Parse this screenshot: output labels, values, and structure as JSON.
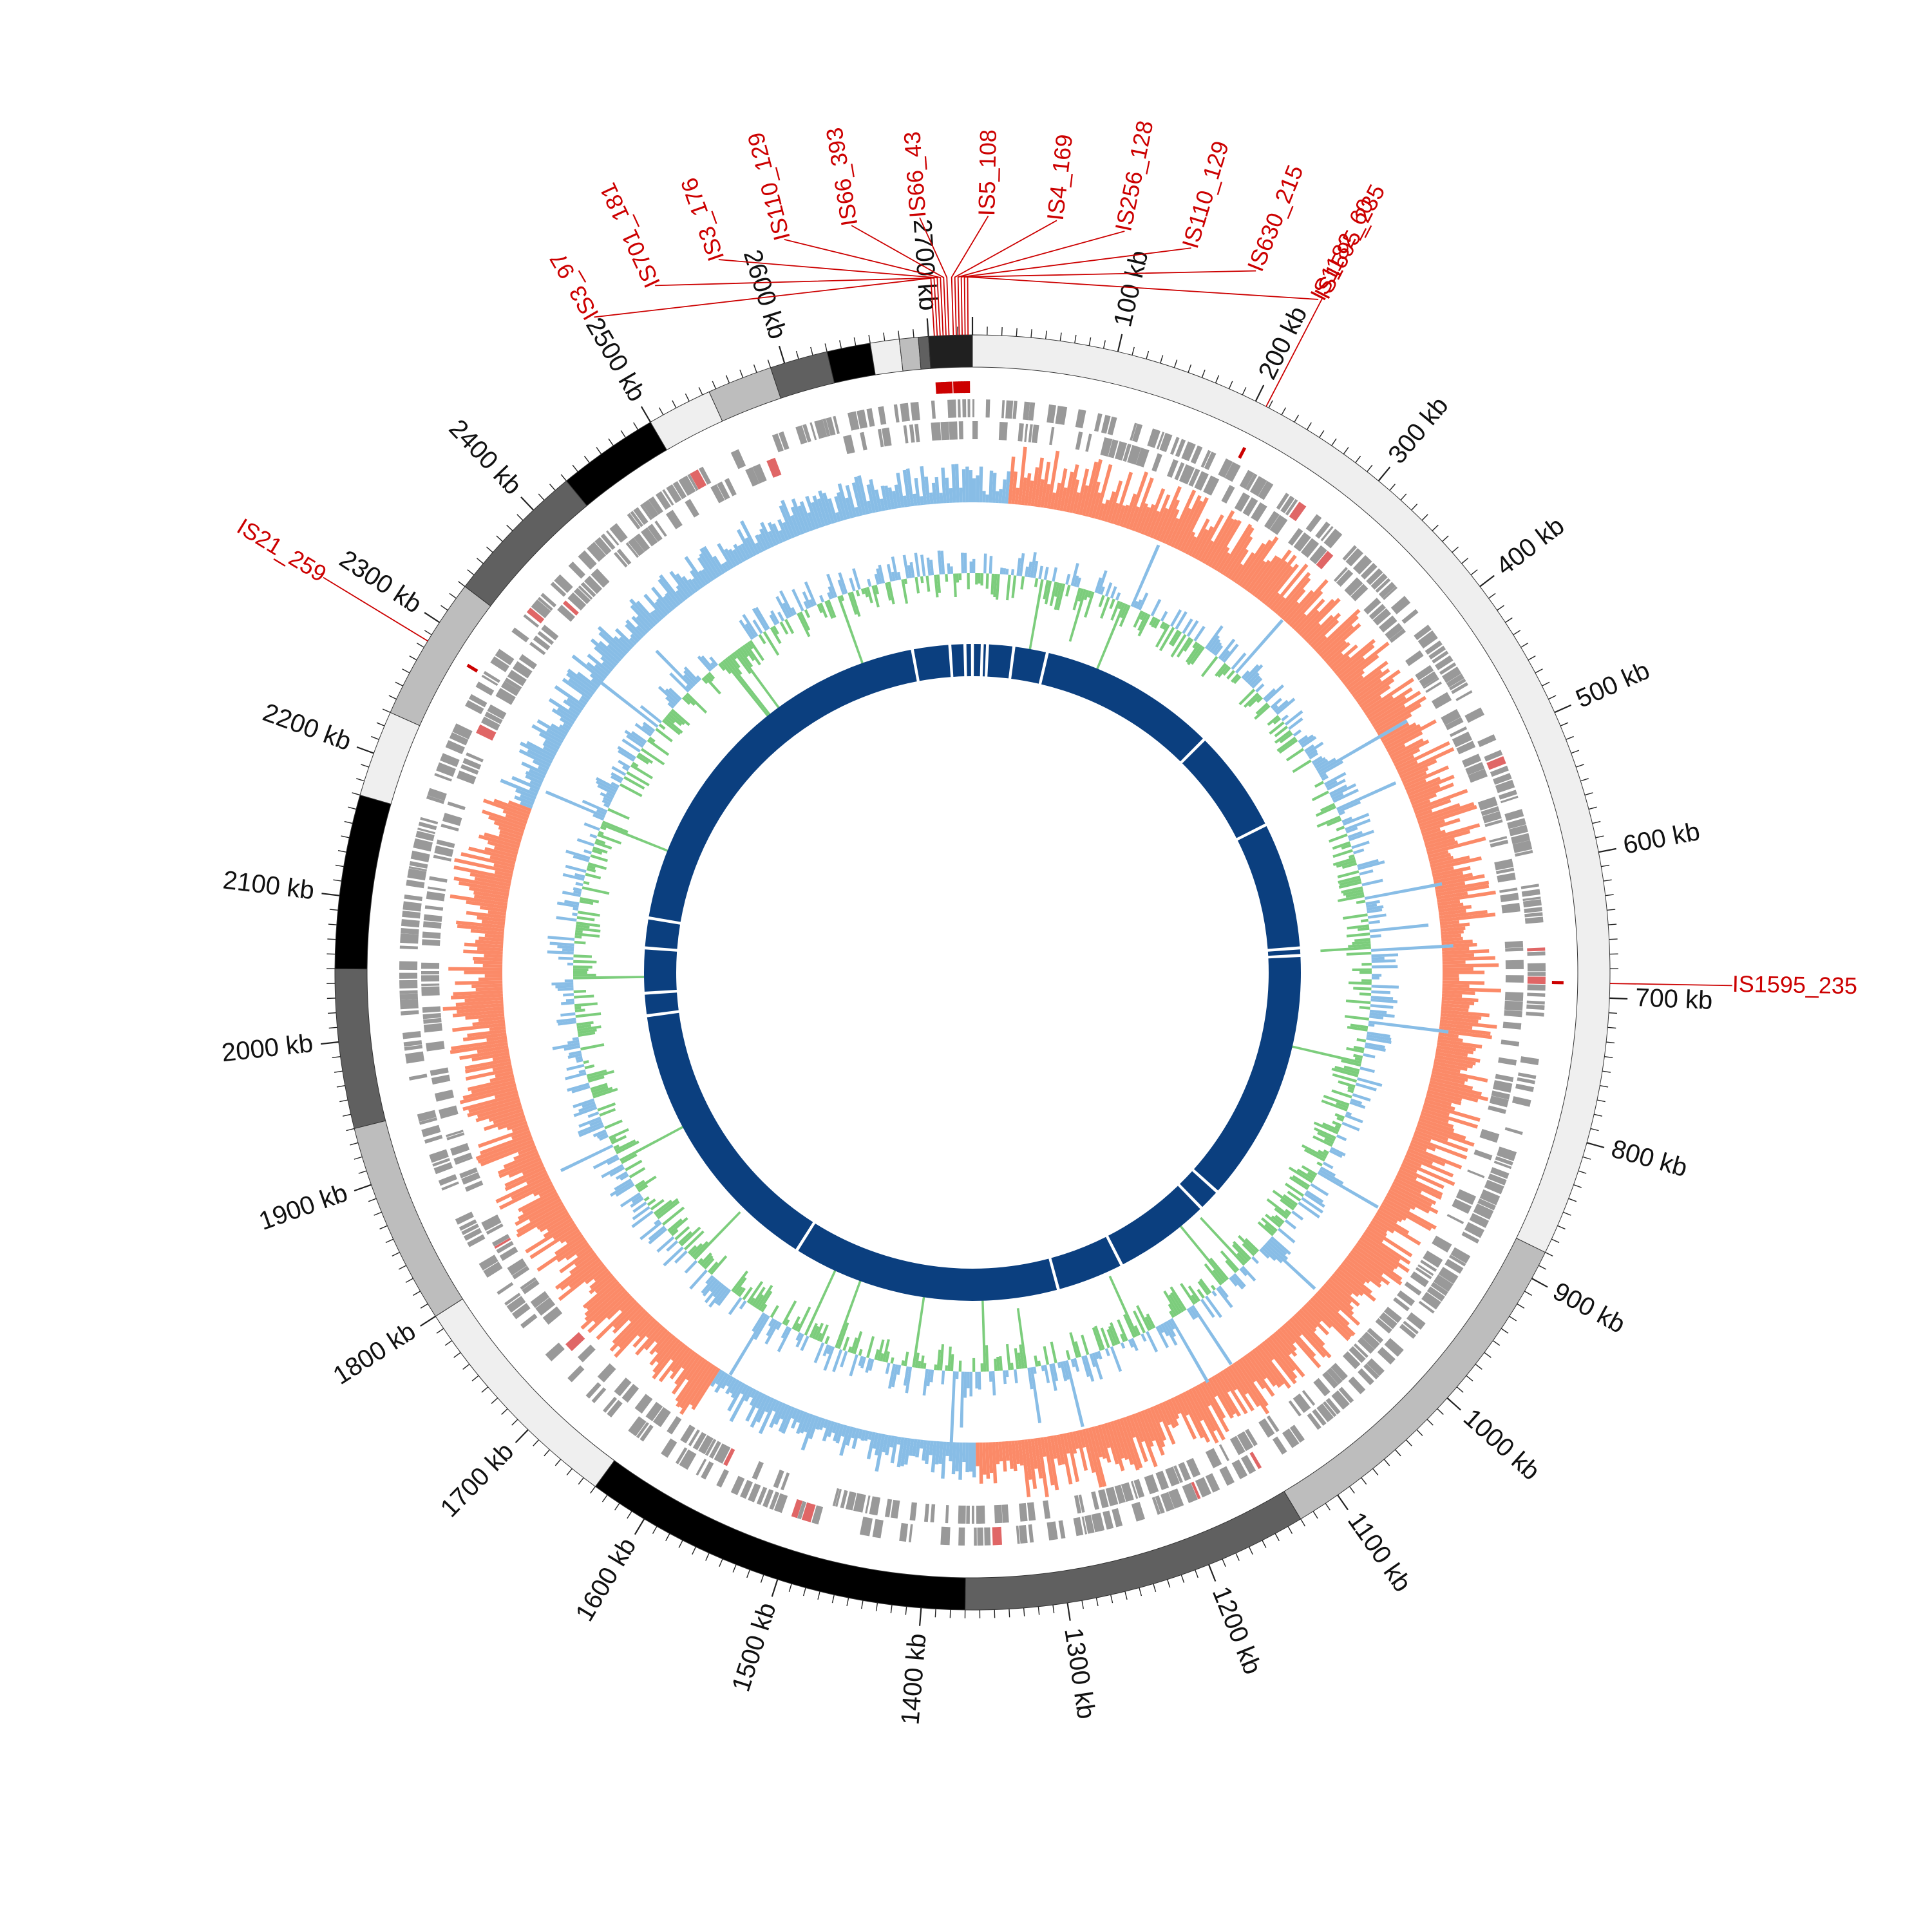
{
  "genome_length_kb": 2730,
  "tick_labels": [
    "100 kb",
    "200 kb",
    "300 kb",
    "400 kb",
    "500 kb",
    "600 kb",
    "700 kb",
    "800 kb",
    "900 kb",
    "1000 kb",
    "1100 kb",
    "1200 kb",
    "1300 kb",
    "1400 kb",
    "1500 kb",
    "1600 kb",
    "1700 kb",
    "1800 kb",
    "1900 kb",
    "2000 kb",
    "2100 kb",
    "2200 kb",
    "2300 kb",
    "2400 kb",
    "2500 kb",
    "2600 kb",
    "2700 kb"
  ],
  "contig_bands": [
    {
      "start": 0,
      "end": 880,
      "shade": "#efefef"
    },
    {
      "start": 880,
      "end": 1130,
      "shade": "#bdbdbd"
    },
    {
      "start": 1130,
      "end": 1370,
      "shade": "#606060"
    },
    {
      "start": 1370,
      "end": 1640,
      "shade": "#000000"
    },
    {
      "start": 1640,
      "end": 1800,
      "shade": "#efefef"
    },
    {
      "start": 1800,
      "end": 1940,
      "shade": "#bdbdbd"
    },
    {
      "start": 1940,
      "end": 2050,
      "shade": "#606060"
    },
    {
      "start": 2050,
      "end": 2170,
      "shade": "#000000"
    },
    {
      "start": 2170,
      "end": 2230,
      "shade": "#efefef"
    },
    {
      "start": 2230,
      "end": 2330,
      "shade": "#bdbdbd"
    },
    {
      "start": 2330,
      "end": 2430,
      "shade": "#606060"
    },
    {
      "start": 2430,
      "end": 2500,
      "shade": "#000000"
    },
    {
      "start": 2500,
      "end": 2545,
      "shade": "#efefef"
    },
    {
      "start": 2545,
      "end": 2590,
      "shade": "#bdbdbd"
    },
    {
      "start": 2590,
      "end": 2630,
      "shade": "#606060"
    },
    {
      "start": 2630,
      "end": 2660,
      "shade": "#000000"
    },
    {
      "start": 2660,
      "end": 2680,
      "shade": "#efefef"
    },
    {
      "start": 2680,
      "end": 2693,
      "shade": "#bdbdbd"
    },
    {
      "start": 2693,
      "end": 2700,
      "shade": "#606060"
    },
    {
      "start": 2700,
      "end": 2730,
      "shade": "#202020"
    }
  ],
  "insertion_sequences": [
    {
      "label": "IS3_97",
      "pos": 2704
    },
    {
      "label": "IS701_181",
      "pos": 2706
    },
    {
      "label": "IS3_176",
      "pos": 2708
    },
    {
      "label": "IS110_129",
      "pos": 2710
    },
    {
      "label": "IS66_393",
      "pos": 2712
    },
    {
      "label": "IS66_43",
      "pos": 2714
    },
    {
      "label": "IS5_108",
      "pos": 2717
    },
    {
      "label": "IS4_169",
      "pos": 2719
    },
    {
      "label": "IS256_128",
      "pos": 2721
    },
    {
      "label": "IS110_129",
      "pos": 2723
    },
    {
      "label": "IS630_215",
      "pos": 2725
    },
    {
      "label": "IS1182_60",
      "pos": 2727
    },
    {
      "label": "IS1595_235",
      "pos": 208
    },
    {
      "label": "IS1595_235",
      "pos": 690
    },
    {
      "label": "IS21_259",
      "pos": 2285
    }
  ],
  "colors": {
    "is_label": "#cc0000",
    "gene_track": "#999999",
    "gene_highlight": "#e06666",
    "gc_skew_pos": "#fb8a68",
    "gc_skew_neg": "#88bde6",
    "gc_content_pos": "#7ccd7c",
    "gc_content_neg": "#88bde6",
    "core_track": "#0b3f7f"
  },
  "core_gaps_kb": [
    0,
    13,
    20,
    55,
    100,
    340,
    480,
    650,
    660,
    1000,
    1030,
    1160,
    1250,
    1610,
    1990,
    2020,
    2080,
    2120,
    2650,
    2700,
    2720
  ]
}
